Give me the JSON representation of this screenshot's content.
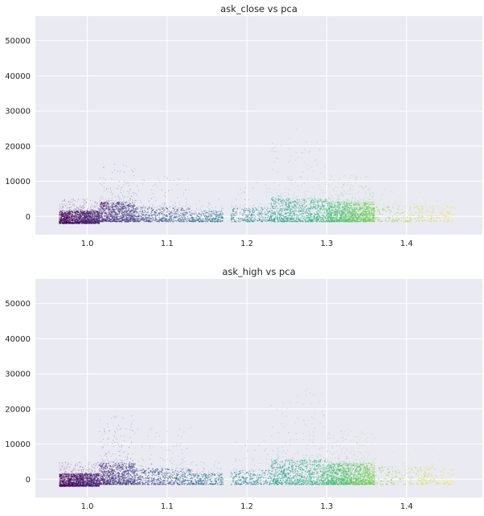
{
  "chart_data": [
    {
      "type": "scatter",
      "title": "ask_close vs pca",
      "xlabel": "",
      "ylabel": "",
      "xlim": [
        0.935,
        1.495
      ],
      "ylim": [
        -5200,
        57000
      ],
      "grid": true,
      "colormap": "viridis",
      "xticks": [
        1.0,
        1.1,
        1.2,
        1.3,
        1.4
      ],
      "xtick_labels": [
        "1.0",
        "1.1",
        "1.2",
        "1.3",
        "1.4"
      ],
      "yticks": [
        0,
        10000,
        20000,
        30000,
        40000,
        50000
      ],
      "ytick_labels": [
        "0",
        "10000",
        "20000",
        "30000",
        "40000",
        "50000"
      ],
      "clusters": [
        {
          "x_min": 0.965,
          "x_max": 1.015,
          "y_core": [
            -2000,
            1500
          ],
          "y_tail": 5000,
          "density": "very high"
        },
        {
          "x_min": 1.015,
          "x_max": 1.06,
          "y_core": [
            -1500,
            4000
          ],
          "y_tail": 15000,
          "density": "high"
        },
        {
          "x_min": 1.06,
          "x_max": 1.13,
          "y_core": [
            -1500,
            2500
          ],
          "y_tail": 12000,
          "density": "medium"
        },
        {
          "x_min": 1.13,
          "x_max": 1.17,
          "y_core": [
            -1500,
            1500
          ],
          "y_tail": 5000,
          "density": "low"
        },
        {
          "x_min": 1.18,
          "x_max": 1.23,
          "y_core": [
            -1500,
            2500
          ],
          "y_tail": 10000,
          "density": "low"
        },
        {
          "x_min": 1.23,
          "x_max": 1.3,
          "y_core": [
            -1500,
            5000
          ],
          "y_tail": 25000,
          "density": "high"
        },
        {
          "x_min": 1.3,
          "x_max": 1.36,
          "y_core": [
            -1500,
            4000
          ],
          "y_tail": 12000,
          "density": "very high"
        },
        {
          "x_min": 1.36,
          "x_max": 1.46,
          "y_core": [
            -1500,
            3000
          ],
          "y_tail": 8000,
          "density": "low"
        }
      ]
    },
    {
      "type": "scatter",
      "title": "ask_high vs pca",
      "xlabel": "",
      "ylabel": "",
      "xlim": [
        0.935,
        1.495
      ],
      "ylim": [
        -5200,
        57000
      ],
      "grid": true,
      "colormap": "viridis",
      "xticks": [
        1.0,
        1.1,
        1.2,
        1.3,
        1.4
      ],
      "xtick_labels": [
        "1.0",
        "1.1",
        "1.2",
        "1.3",
        "1.4"
      ],
      "yticks": [
        0,
        10000,
        20000,
        30000,
        40000,
        50000
      ],
      "ytick_labels": [
        "0",
        "10000",
        "20000",
        "30000",
        "40000",
        "50000"
      ],
      "clusters": [
        {
          "x_min": 0.965,
          "x_max": 1.015,
          "y_core": [
            -2000,
            1500
          ],
          "y_tail": 5000,
          "density": "very high"
        },
        {
          "x_min": 1.015,
          "x_max": 1.06,
          "y_core": [
            -1500,
            4500
          ],
          "y_tail": 18000,
          "density": "high"
        },
        {
          "x_min": 1.06,
          "x_max": 1.13,
          "y_core": [
            -1500,
            3000
          ],
          "y_tail": 15000,
          "density": "medium"
        },
        {
          "x_min": 1.13,
          "x_max": 1.17,
          "y_core": [
            -1500,
            1500
          ],
          "y_tail": 5000,
          "density": "low"
        },
        {
          "x_min": 1.18,
          "x_max": 1.23,
          "y_core": [
            -1500,
            2500
          ],
          "y_tail": 12000,
          "density": "low"
        },
        {
          "x_min": 1.23,
          "x_max": 1.3,
          "y_core": [
            -1500,
            5500
          ],
          "y_tail": 26000,
          "density": "high"
        },
        {
          "x_min": 1.3,
          "x_max": 1.36,
          "y_core": [
            -1500,
            4500
          ],
          "y_tail": 14000,
          "density": "very high"
        },
        {
          "x_min": 1.36,
          "x_max": 1.46,
          "y_core": [
            -1500,
            3500
          ],
          "y_tail": 9000,
          "density": "low"
        }
      ]
    }
  ],
  "colors": {
    "axes_background": "#eaeaf2",
    "grid": "#ffffff",
    "text": "#262626",
    "figure_background": "#ffffff"
  }
}
